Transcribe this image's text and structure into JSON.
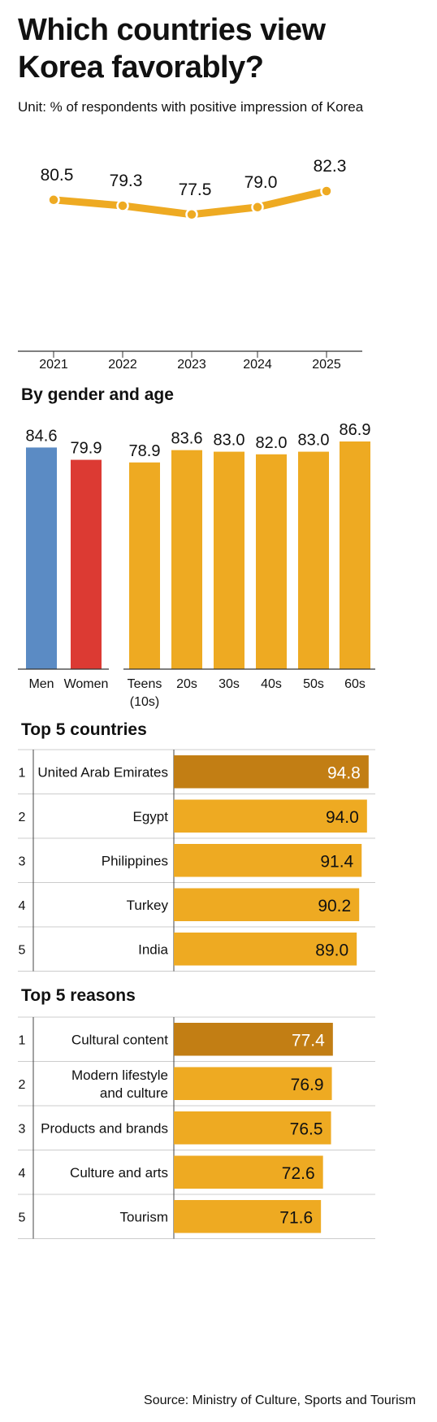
{
  "title_lines": [
    "Which countries view",
    "Korea favorably?"
  ],
  "unit": "Unit: % of respondents with positive impression of Korea",
  "colors": {
    "line": "#EEAA22",
    "men": "#5B8BC4",
    "women": "#DC3A33",
    "bar": "#EEAA22",
    "highlight": "#C27E14",
    "rule": "#cccccc"
  },
  "sections": {
    "gender_age": "By gender and age",
    "countries": "Top 5 countries",
    "reasons": "Top 5 reasons"
  },
  "source": "Source: Ministry of Culture, Sports and Tourism",
  "chart_data": [
    {
      "type": "line",
      "x": [
        "2021",
        "2022",
        "2023",
        "2024",
        "2025"
      ],
      "series": [
        {
          "values": [
            80.5,
            79.3,
            77.5,
            79.0,
            82.3
          ]
        }
      ],
      "value_labels": [
        "80.5",
        "79.3",
        "77.5",
        "79.0",
        "82.3"
      ],
      "grid": false
    },
    {
      "type": "bar",
      "categories": [
        "Men",
        "Women",
        "Teens (10s)",
        "20s",
        "30s",
        "40s",
        "50s",
        "60s"
      ],
      "category_lines": [
        [
          "Men"
        ],
        [
          "Women"
        ],
        [
          "Teens",
          "(10s)"
        ],
        [
          "20s"
        ],
        [
          "30s"
        ],
        [
          "40s"
        ],
        [
          "50s"
        ],
        [
          "60s"
        ]
      ],
      "values": [
        84.6,
        79.9,
        78.9,
        83.6,
        83.0,
        82.0,
        83.0,
        86.9
      ],
      "value_labels": [
        "84.6",
        "79.9",
        "78.9",
        "83.6",
        "83.0",
        "82.0",
        "83.0",
        "86.9"
      ],
      "groups": [
        "gender",
        "gender",
        "age",
        "age",
        "age",
        "age",
        "age",
        "age"
      ],
      "ylim": [
        0,
        86.9
      ]
    },
    {
      "type": "bar",
      "orientation": "horizontal",
      "ranks": [
        "1",
        "2",
        "3",
        "4",
        "5"
      ],
      "categories": [
        [
          "United Arab Emirates"
        ],
        [
          "Egypt"
        ],
        [
          "Philippines"
        ],
        [
          "Turkey"
        ],
        [
          "India"
        ]
      ],
      "values": [
        94.8,
        94.0,
        91.4,
        90.2,
        89.0
      ],
      "value_labels": [
        "94.8",
        "94.0",
        "91.4",
        "90.2",
        "89.0"
      ],
      "xlim": [
        0,
        100
      ]
    },
    {
      "type": "bar",
      "orientation": "horizontal",
      "ranks": [
        "1",
        "2",
        "3",
        "4",
        "5"
      ],
      "categories": [
        [
          "Cultural content"
        ],
        [
          "Modern lifestyle",
          "and culture"
        ],
        [
          "Products and brands"
        ],
        [
          "Culture and arts"
        ],
        [
          "Tourism"
        ]
      ],
      "values": [
        77.4,
        76.9,
        76.5,
        72.6,
        71.6
      ],
      "value_labels": [
        "77.4",
        "76.9",
        "76.5",
        "72.6",
        "71.6"
      ],
      "xlim": [
        0,
        100
      ]
    }
  ]
}
